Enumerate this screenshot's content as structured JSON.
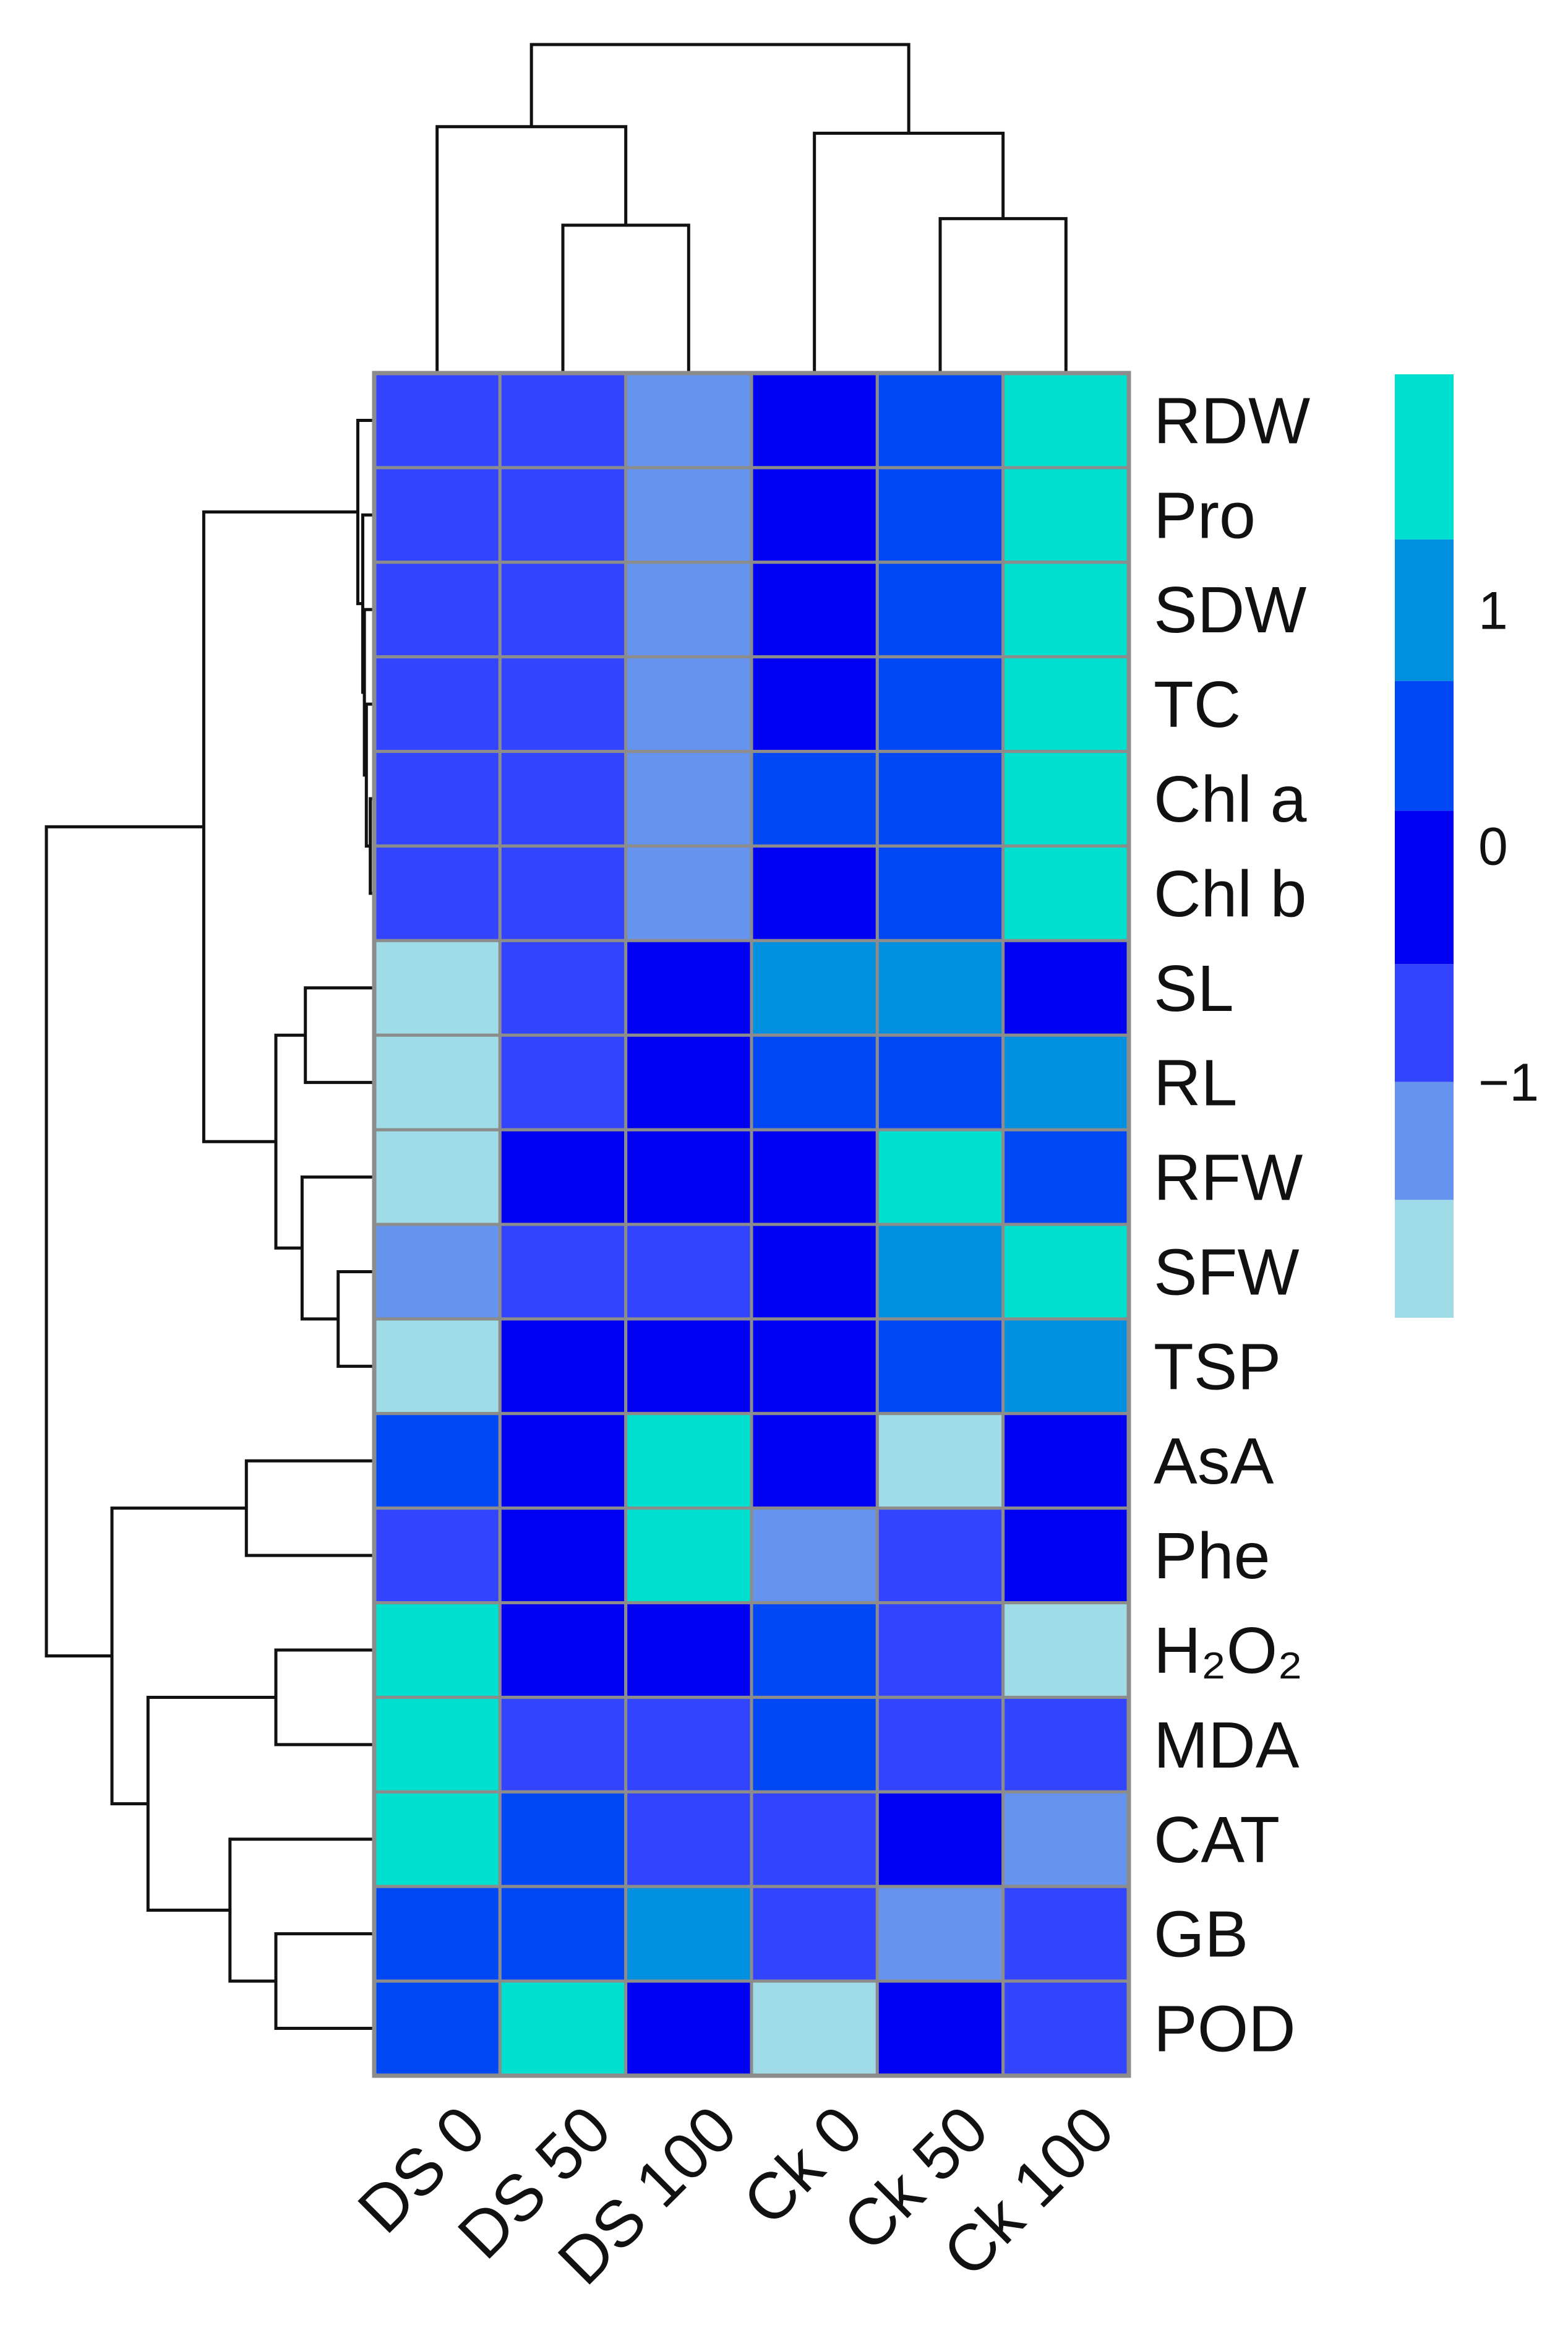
{
  "chart_data": {
    "type": "heatmap",
    "title": "",
    "columns": [
      "DS 0",
      "DS 50",
      "DS 100",
      "Ck 0",
      "Ck 50",
      "Ck 100"
    ],
    "rows": [
      "RDW",
      "Pro",
      "SDW",
      "TC",
      "Chl a",
      "Chl b",
      "SL",
      "RL",
      "RFW",
      "SFW",
      "TSP",
      "AsA",
      "Phe",
      "H₂O₂",
      "MDA",
      "CAT",
      "GB",
      "POD"
    ],
    "values": [
      [
        -0.7,
        -0.7,
        -1.2,
        0.0,
        0.3,
        1.7
      ],
      [
        -0.7,
        -0.7,
        -1.2,
        0.0,
        0.3,
        1.7
      ],
      [
        -0.7,
        -0.7,
        -1.2,
        0.0,
        0.3,
        1.7
      ],
      [
        -0.7,
        -0.7,
        -1.2,
        0.0,
        0.3,
        1.7
      ],
      [
        -0.7,
        -0.7,
        -1.2,
        0.3,
        0.3,
        1.7
      ],
      [
        -0.7,
        -0.7,
        -1.2,
        0.0,
        0.3,
        1.7
      ],
      [
        -1.7,
        -0.7,
        0.0,
        1.1,
        1.1,
        0.0
      ],
      [
        -1.7,
        -0.7,
        0.0,
        0.3,
        0.3,
        1.1
      ],
      [
        -1.7,
        0.0,
        0.0,
        0.0,
        1.7,
        0.3
      ],
      [
        -1.2,
        -0.7,
        -0.7,
        0.0,
        1.1,
        1.7
      ],
      [
        -1.7,
        0.0,
        0.0,
        0.0,
        0.3,
        1.1
      ],
      [
        0.3,
        0.0,
        1.7,
        0.0,
        -1.7,
        0.0
      ],
      [
        -0.7,
        0.0,
        1.7,
        -1.2,
        -0.7,
        0.0
      ],
      [
        1.7,
        0.0,
        0.0,
        0.3,
        -0.7,
        -1.7
      ],
      [
        1.7,
        -0.7,
        -0.7,
        0.3,
        -0.7,
        -0.7
      ],
      [
        1.7,
        0.3,
        -0.7,
        -0.7,
        0.0,
        -1.2
      ],
      [
        0.3,
        0.3,
        1.1,
        -0.7,
        -1.2,
        -0.7
      ],
      [
        0.3,
        1.7,
        0.0,
        -1.7,
        0.0,
        -0.7
      ]
    ],
    "color_scale": {
      "min": -2.0,
      "max": 2.0,
      "bins": [
        {
          "from": -2.0,
          "to": -1.5,
          "color": "#a0dce8"
        },
        {
          "from": -1.5,
          "to": -1.0,
          "color": "#6693ed"
        },
        {
          "from": -1.0,
          "to": -0.5,
          "color": "#3344ff"
        },
        {
          "from": -0.5,
          "to": 0.15,
          "color": "#0000f2"
        },
        {
          "from": 0.15,
          "to": 0.7,
          "color": "#0047f5"
        },
        {
          "from": 0.7,
          "to": 1.3,
          "color": "#0090df"
        },
        {
          "from": 1.3,
          "to": 2.0,
          "color": "#00e0d0"
        }
      ],
      "tick_labels": [
        "1",
        "0",
        "−1"
      ],
      "tick_values": [
        1,
        0,
        -1
      ]
    },
    "column_dendrogram": [
      {
        "a": "DS 50",
        "b": "DS 100",
        "height": 0.45
      },
      {
        "a": "Ck 50",
        "b": "Ck 100",
        "height": 0.47
      },
      {
        "a": "DS 0",
        "b": "DS 50+DS 100",
        "height": 0.75
      },
      {
        "a": "Ck 0",
        "b": "Ck 50+Ck 100",
        "height": 0.73
      },
      {
        "a": "DS",
        "b": "Ck",
        "height": 1.0
      }
    ],
    "row_dendrogram": [
      {
        "a": "Chl a",
        "b": "Chl b",
        "height": 0.012
      },
      {
        "a": "TC",
        "b": "Chl a+Chl b",
        "height": 0.024
      },
      {
        "a": "Pro",
        "b": "SDW+TC+Chl a+Chl b",
        "height": 0.035
      },
      {
        "a": "RDW",
        "b": "Pro+SDW+TC+Chl a+Chl b",
        "height": 0.05
      },
      {
        "a": "SL",
        "b": "RL",
        "height": 0.21
      },
      {
        "a": "SFW",
        "b": "TSP",
        "height": 0.11
      },
      {
        "a": "RFW",
        "b": "SFW+TSP",
        "height": 0.22
      },
      {
        "a": "SL+RL",
        "b": "RFW+SFW+TSP",
        "height": 0.3
      },
      {
        "a": "RDW..Chl b",
        "b": "SL..TSP",
        "height": 0.52
      },
      {
        "a": "AsA",
        "b": "Phe",
        "height": 0.39
      },
      {
        "a": "H₂O₂",
        "b": "MDA",
        "height": 0.3
      },
      {
        "a": "GB",
        "b": "POD",
        "height": 0.3
      },
      {
        "a": "CAT",
        "b": "GB+POD",
        "height": 0.44
      },
      {
        "a": "H₂O₂+MDA",
        "b": "CAT+GB+POD",
        "height": 0.69
      },
      {
        "a": "AsA+Phe",
        "b": "H₂O₂..POD",
        "height": 0.8
      },
      {
        "a": "all upper",
        "b": "all lower",
        "height": 1.0
      }
    ]
  }
}
